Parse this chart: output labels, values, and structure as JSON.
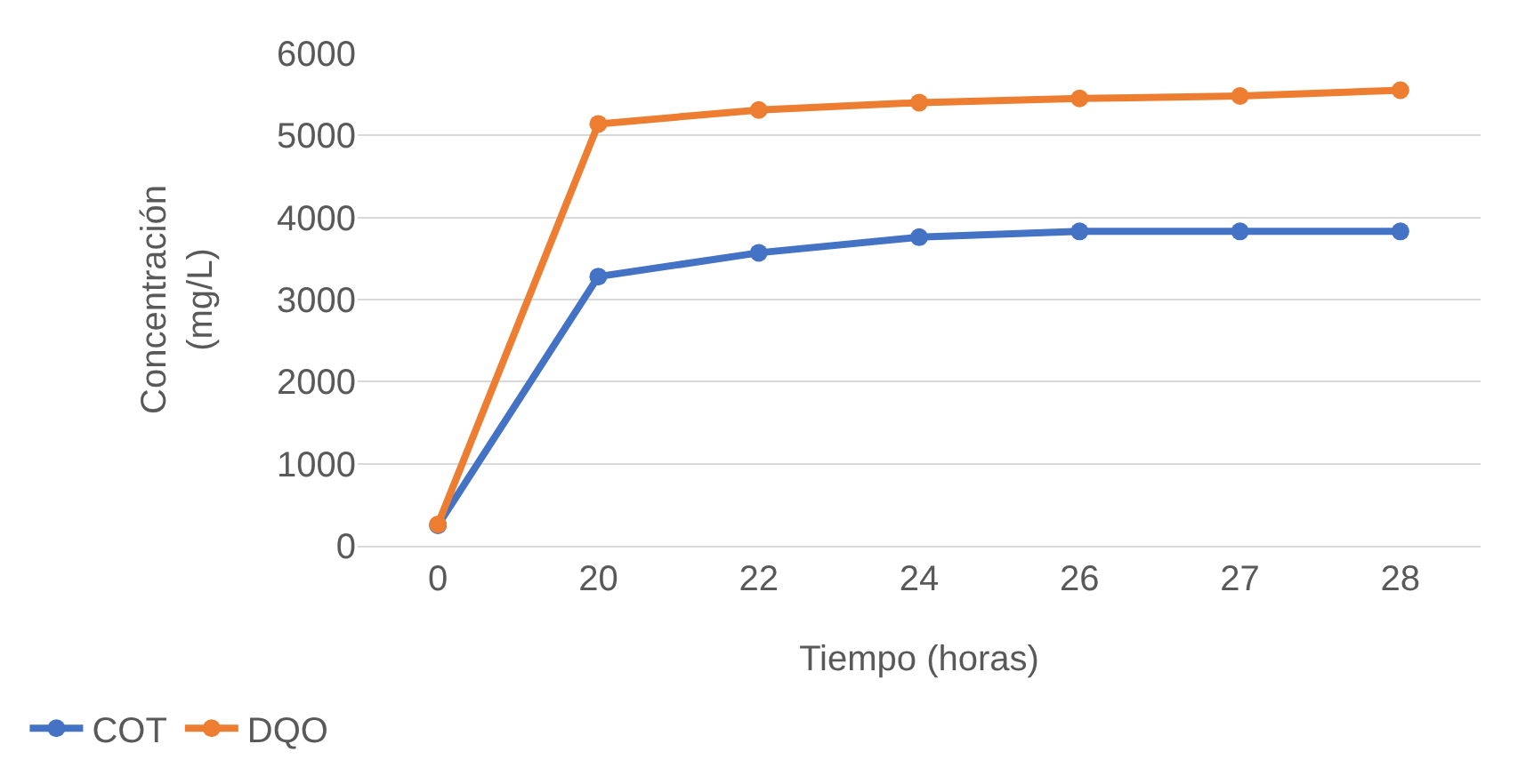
{
  "chart_data": {
    "type": "line",
    "xlabel": "Tiempo (horas)",
    "ylabel": "Concentración (mg/L)",
    "categories": [
      "0",
      "20",
      "22",
      "24",
      "26",
      "27",
      "28"
    ],
    "series": [
      {
        "name": "COT",
        "color": "#4472c4",
        "values": [
          250,
          3280,
          3570,
          3760,
          3830,
          3830,
          3830
        ]
      },
      {
        "name": "DQO",
        "color": "#ed7d31",
        "values": [
          260,
          5140,
          5310,
          5400,
          5450,
          5480,
          5550
        ]
      }
    ],
    "ylim": [
      0,
      6000
    ],
    "yticks": [
      0,
      1000,
      2000,
      3000,
      4000,
      5000,
      6000
    ],
    "grid": "y",
    "legend": "bottom left",
    "marker": "circle",
    "line_style": "solid"
  }
}
